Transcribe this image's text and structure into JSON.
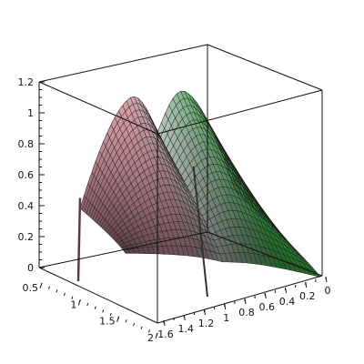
{
  "chart_data": {
    "type": "surface",
    "title": "",
    "xlabel": "",
    "ylabel": "",
    "zlabel": "",
    "z_axis": {
      "range": [
        0,
        1.2
      ],
      "ticks": [
        {
          "value": 0,
          "label": "0"
        },
        {
          "value": 0.2,
          "label": "0.2"
        },
        {
          "value": 0.4,
          "label": "0.4"
        },
        {
          "value": 0.6,
          "label": "0.6"
        },
        {
          "value": 0.8,
          "label": "0.8"
        },
        {
          "value": 1.0,
          "label": "1"
        },
        {
          "value": 1.2,
          "label": "1.2"
        }
      ]
    },
    "left_axis": {
      "range": [
        0.5,
        2.0
      ],
      "ticks": [
        {
          "value": 0.5,
          "label": "0.5"
        },
        {
          "value": 1.0,
          "label": "1"
        },
        {
          "value": 1.5,
          "label": "1.5"
        },
        {
          "value": 2.0,
          "label": "2"
        }
      ]
    },
    "right_axis": {
      "range": [
        0,
        1.6
      ],
      "ticks": [
        {
          "value": 1.6,
          "label": "1.6"
        },
        {
          "value": 1.4,
          "label": "1.4"
        },
        {
          "value": 1.2,
          "label": "1.2"
        },
        {
          "value": 1.0,
          "label": "1"
        },
        {
          "value": 0.8,
          "label": "0.8"
        },
        {
          "value": 0.6,
          "label": "0.6"
        },
        {
          "value": 0.4,
          "label": "0.4"
        },
        {
          "value": 0.2,
          "label": "0.2"
        },
        {
          "value": 0.0,
          "label": "0"
        }
      ]
    },
    "surface": {
      "peak_values": [
        1.1,
        1.1
      ],
      "min_center_value": 0.85,
      "edge_spike_value": 0.45,
      "colors": {
        "left_dark": "#6f4b55",
        "left_light": "#c88e97",
        "center": "#b8c2bb",
        "right_dark": "#2c6d3a",
        "right_light": "#45d64d"
      }
    },
    "grid": false,
    "legend": "none"
  }
}
